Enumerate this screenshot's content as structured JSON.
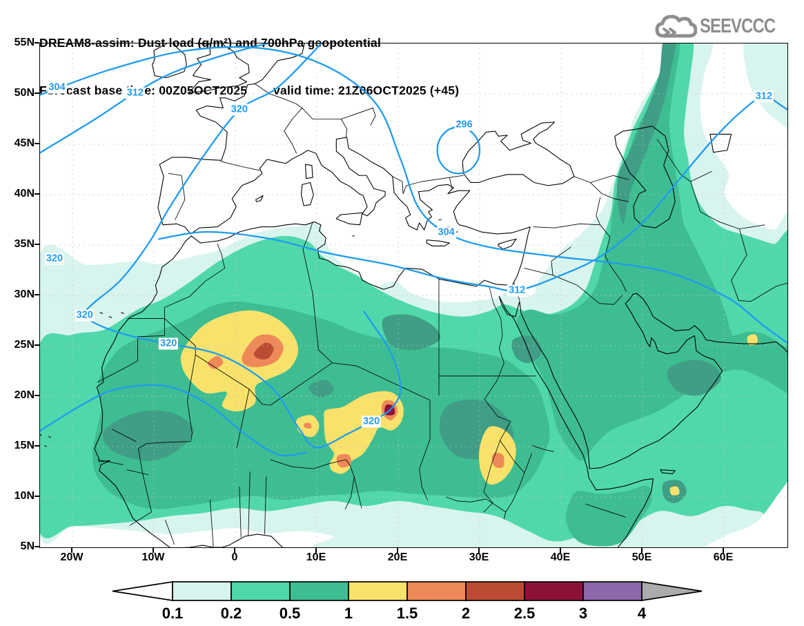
{
  "header": {
    "title_line1": "DREAM8-assim: Dust load (g/m²) and 700hPa geopotential",
    "line2_left": "Forecast base time: 00Z05OCT2025",
    "line2_right": "valid time: 21Z06OCT2025 (+45)",
    "logo_text": "SEEVCCC"
  },
  "chart_data": {
    "type": "map-contour",
    "title": "DREAM8-assim: Dust load (g/m²) and 700hPa geopotential",
    "fill_variable": "Dust load (g/m²)",
    "line_variable": "700hPa geopotential",
    "forecast_base_time": "00Z05OCT2025",
    "valid_time": "21Z06OCT2025",
    "forecast_lead": "+45",
    "x_axis": {
      "type": "longitude",
      "ticks": [
        "20W",
        "10W",
        "0",
        "10E",
        "20E",
        "30E",
        "40E",
        "50E",
        "60E"
      ],
      "tick_values": [
        -20,
        -10,
        0,
        10,
        20,
        30,
        40,
        50,
        60
      ],
      "range_deg": [
        -24,
        67.8
      ]
    },
    "y_axis": {
      "type": "latitude",
      "ticks": [
        "55N",
        "50N",
        "45N",
        "40N",
        "35N",
        "30N",
        "25N",
        "20N",
        "15N",
        "10N",
        "5N"
      ],
      "tick_values": [
        55,
        50,
        45,
        40,
        35,
        30,
        25,
        20,
        15,
        10,
        5
      ],
      "range_deg": [
        5,
        55
      ]
    },
    "colorbar": {
      "labels": [
        "0.1",
        "0.2",
        "0.5",
        "1",
        "1.5",
        "2",
        "2.5",
        "3",
        "4"
      ],
      "levels": [
        0.1,
        0.2,
        0.5,
        1,
        1.5,
        2,
        2.5,
        3,
        4
      ],
      "colors": [
        "#ffffff",
        "#d8f4ee",
        "#50d8ab",
        "#3fbd92",
        "#f8e26b",
        "#ee8a57",
        "#bb4c33",
        "#8c1137",
        "#8a68a9",
        "#ababab"
      ]
    },
    "contour_line_color": "#1e9bf0",
    "geopotential_labels": [
      {
        "value": "304",
        "lon": -21.9,
        "lat": 50.6
      },
      {
        "value": "312",
        "lon": -12.3,
        "lat": 50.1
      },
      {
        "value": "320",
        "lon": 0.5,
        "lat": 48.4
      },
      {
        "value": "296",
        "lon": 28.1,
        "lat": 46.9
      },
      {
        "value": "304",
        "lon": 25.9,
        "lat": 36.2
      },
      {
        "value": "312",
        "lon": 34.6,
        "lat": 30.5
      },
      {
        "value": "312",
        "lon": 64.9,
        "lat": 49.7
      },
      {
        "value": "320",
        "lon": -22.2,
        "lat": 33.6
      },
      {
        "value": "320",
        "lon": -18.5,
        "lat": 28.0
      },
      {
        "value": "320",
        "lon": -8.2,
        "lat": 25.2
      },
      {
        "value": "320",
        "lon": 16.7,
        "lat": 17.5
      }
    ]
  }
}
